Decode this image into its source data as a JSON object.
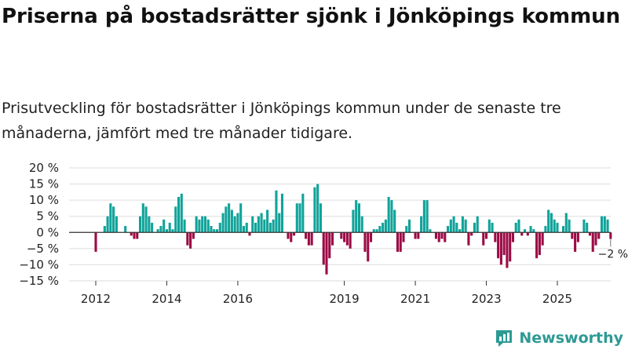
{
  "header": {
    "title": "Priserna på bostadsrätter sjönk i Jönköpings kommun",
    "subtitle": "Prisutveckling för bostadsrätter i Jönköpings kommun under de senaste tre månaderna, jämfört med tre månader tidigare."
  },
  "brand": {
    "name": "Newsworthy",
    "icon": "newsworthy-logo-icon"
  },
  "colors": {
    "positive": "#10a39a",
    "negative": "#9c0b45",
    "grid": "#dddddd",
    "zero": "#333333"
  },
  "chart_data": {
    "type": "bar",
    "ylim": [
      -15,
      20
    ],
    "yticks": [
      "20 %",
      "15 %",
      "10 %",
      "5 %",
      "0 %",
      "−5 %",
      "−10 %",
      "−15 %"
    ],
    "ytick_values": [
      20,
      15,
      10,
      5,
      0,
      -5,
      -10,
      -15
    ],
    "xticks": [
      "2012",
      "2014",
      "2016",
      "2019",
      "2021",
      "2023",
      "2025"
    ],
    "xtick_values": [
      2012.0,
      2014.0,
      2016.0,
      2019.0,
      2021.0,
      2023.0,
      2025.0
    ],
    "x_start": 2012.0,
    "step_months": 1,
    "last_label": "−2 %",
    "values": [
      -6,
      0,
      0,
      2,
      5,
      9,
      8,
      5,
      0,
      0,
      2,
      0,
      -1,
      -2,
      -2,
      5,
      9,
      8,
      5,
      3,
      0,
      1,
      2,
      4,
      1,
      3,
      1,
      8,
      11,
      12,
      4,
      -4,
      -5,
      -2,
      5,
      4,
      5,
      5,
      4,
      2,
      1,
      1,
      3,
      6,
      8,
      9,
      7,
      5,
      6,
      9,
      2,
      3,
      -1,
      5,
      3,
      5,
      6,
      4,
      7,
      3,
      4,
      13,
      6,
      12,
      0,
      -2,
      -3,
      -1,
      9,
      9,
      12,
      -2,
      -4,
      -4,
      14,
      15,
      9,
      -10,
      -13,
      -8,
      -4,
      0,
      0,
      -2,
      -3,
      -4,
      -5,
      7,
      10,
      9,
      5,
      -6,
      -9,
      -3,
      1,
      1,
      2,
      3,
      4,
      11,
      10,
      7,
      -6,
      -6,
      -3,
      2,
      4,
      0,
      -2,
      -2,
      5,
      10,
      10,
      1,
      0,
      -2,
      -3,
      -2,
      -3,
      2,
      4,
      5,
      3,
      1,
      5,
      4,
      -4,
      -1,
      3,
      5,
      0,
      -4,
      -2,
      4,
      3,
      -3,
      -8,
      -10,
      -7,
      -11,
      -9,
      -3,
      3,
      4,
      -1,
      1,
      -1,
      2,
      1,
      -8,
      -7,
      -4,
      2,
      7,
      6,
      4,
      3,
      0,
      2,
      6,
      4,
      -2,
      -6,
      -3,
      0,
      4,
      3,
      -1,
      -6,
      -4,
      -2,
      5,
      5,
      4,
      -2
    ]
  }
}
